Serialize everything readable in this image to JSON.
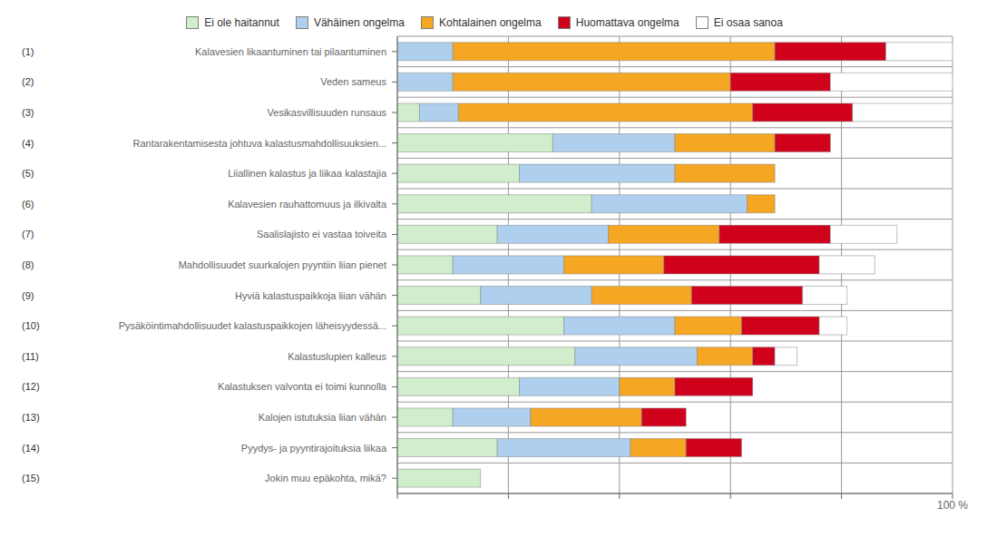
{
  "chart_data": {
    "type": "bar",
    "orientation": "horizontal",
    "stacked": true,
    "grid": true,
    "legend": "top",
    "categories": [
      "Kalavesien likaantuminen tai pilaantuminen",
      "Veden sameus",
      "Vesikasvillisuuden runsaus",
      "Rantarakentamisesta johtuva kalastusmahdollisuuksien...",
      "Liiallinen kalastus ja liikaa kalastajia",
      "Kalavesien rauhattomuus ja ilkivalta",
      "Saalislajisto ei vastaa toiveita",
      "Mahdollisuudet suurkalojen pyyntiin liian pienet",
      "Hyviä kalastuspaikkoja liian vähän",
      "Pysäköintimahdollisuudet kalastuspaikkojen läheisyydessä...",
      "Kalastuslupien kalleus",
      "Kalastuksen valvonta ei toimi kunnolla",
      "Kalojen istutuksia liian vähän",
      "Pyydys- ja pyyntirajoituksia liikaa",
      "Jokin muu epäkohta, mikä?"
    ],
    "row_labels": [
      "(1)",
      "(2)",
      "(3)",
      "(4)",
      "(5)",
      "(6)",
      "(7)",
      "(8)",
      "(9)",
      "(10)",
      "(11)",
      "(12)",
      "(13)",
      "(14)",
      "(15)"
    ],
    "series": [
      {
        "name": "Ei ole haitannut",
        "color": "#d0edcc",
        "values": [
          0,
          0,
          4,
          28,
          22,
          35,
          18,
          10,
          15,
          30,
          32,
          22,
          10,
          18,
          15
        ]
      },
      {
        "name": "Vähäinen ongelma",
        "color": "#aecfed",
        "values": [
          10,
          10,
          7,
          22,
          28,
          28,
          20,
          20,
          20,
          20,
          22,
          18,
          14,
          24,
          0
        ]
      },
      {
        "name": "Kohtalainen ongelma",
        "color": "#f5a623",
        "values": [
          58,
          50,
          53,
          18,
          18,
          5,
          20,
          18,
          18,
          12,
          10,
          10,
          20,
          10,
          0
        ]
      },
      {
        "name": "Huomattava ongelma",
        "color": "#d0021b",
        "values": [
          20,
          18,
          18,
          10,
          0,
          0,
          20,
          28,
          20,
          14,
          4,
          14,
          8,
          10,
          0
        ]
      },
      {
        "name": "Ei osaa sanoa",
        "color": "#ffffff",
        "values": [
          12,
          22,
          18,
          0,
          0,
          0,
          12,
          10,
          8,
          5,
          4,
          0,
          0,
          0,
          0
        ]
      }
    ],
    "xlim": [
      0,
      100
    ],
    "xticks": [
      {
        "value": 0,
        "label": null
      },
      {
        "value": 20,
        "label": null
      },
      {
        "value": 40,
        "label": null
      },
      {
        "value": 60,
        "label": null
      },
      {
        "value": 80,
        "label": null
      },
      {
        "value": 100,
        "label": "100 %"
      }
    ]
  }
}
